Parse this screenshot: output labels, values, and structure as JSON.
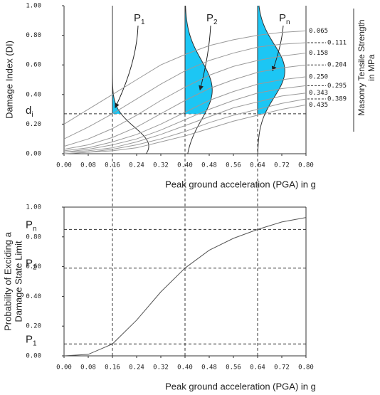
{
  "chart_data": [
    {
      "type": "line",
      "ylabel": "Damage Index (DI)",
      "xlabel": "Peak ground acceleration (PGA) in g",
      "legend_title": [
        "Masonry Tensile Strength",
        "in MPa"
      ],
      "xlim": [
        0,
        0.8
      ],
      "ylim": [
        0,
        1
      ],
      "xticks": [
        {
          "value": 0,
          "label": "0.00"
        },
        {
          "value": 0.08,
          "label": "0.08"
        },
        {
          "value": 0.16,
          "label": "0.16"
        },
        {
          "value": 0.24,
          "label": "0.24"
        },
        {
          "value": 0.32,
          "label": "0.32"
        },
        {
          "value": 0.4,
          "label": "0.40"
        },
        {
          "value": 0.48,
          "label": "0.48"
        },
        {
          "value": 0.56,
          "label": "0.56"
        },
        {
          "value": 0.64,
          "label": "0.64"
        },
        {
          "value": 0.72,
          "label": "0.72"
        },
        {
          "value": 0.8,
          "label": "0.80"
        }
      ],
      "yticks": [
        {
          "value": 0,
          "label": "0.00"
        },
        {
          "value": 0.2,
          "label": "0.20"
        },
        {
          "value": 0.4,
          "label": "0.40"
        },
        {
          "value": 0.6,
          "label": "0.60"
        },
        {
          "value": 0.8,
          "label": "0.80"
        },
        {
          "value": 1,
          "label": "1.00"
        }
      ],
      "x": [
        0,
        0.08,
        0.16,
        0.24,
        0.32,
        0.4,
        0.48,
        0.56,
        0.64,
        0.72,
        0.8
      ],
      "series": [
        {
          "name": "0.065",
          "color": "#9a9a9a",
          "values": [
            0.2,
            0.3,
            0.4,
            0.5,
            0.6,
            0.67,
            0.73,
            0.77,
            0.8,
            0.82,
            0.83
          ]
        },
        {
          "name": "0.111",
          "color": "#9a9a9a",
          "values": [
            0.1,
            0.18,
            0.27,
            0.37,
            0.47,
            0.56,
            0.63,
            0.68,
            0.72,
            0.74,
            0.75
          ]
        },
        {
          "name": "0.158",
          "color": "#9a9a9a",
          "values": [
            0.05,
            0.1,
            0.17,
            0.26,
            0.36,
            0.45,
            0.53,
            0.59,
            0.63,
            0.66,
            0.68
          ]
        },
        {
          "name": "0.204",
          "color": "#9a9a9a",
          "values": [
            0.03,
            0.06,
            0.11,
            0.18,
            0.27,
            0.36,
            0.44,
            0.5,
            0.55,
            0.58,
            0.6
          ]
        },
        {
          "name": "0.250",
          "color": "#9a9a9a",
          "values": [
            0.02,
            0.04,
            0.08,
            0.13,
            0.2,
            0.28,
            0.36,
            0.42,
            0.47,
            0.5,
            0.52
          ]
        },
        {
          "name": "0.295",
          "color": "#9a9a9a",
          "values": [
            0.01,
            0.03,
            0.06,
            0.1,
            0.16,
            0.23,
            0.3,
            0.36,
            0.41,
            0.44,
            0.46
          ]
        },
        {
          "name": "0.343",
          "color": "#9a9a9a",
          "values": [
            0.01,
            0.02,
            0.04,
            0.08,
            0.13,
            0.19,
            0.25,
            0.31,
            0.35,
            0.39,
            0.41
          ]
        },
        {
          "name": "0.389",
          "color": "#9a9a9a",
          "values": [
            0,
            0.01,
            0.03,
            0.06,
            0.1,
            0.15,
            0.21,
            0.26,
            0.3,
            0.34,
            0.37
          ]
        },
        {
          "name": "0.435",
          "color": "#9a9a9a",
          "values": [
            0,
            0.01,
            0.02,
            0.04,
            0.08,
            0.12,
            0.17,
            0.22,
            0.26,
            0.3,
            0.33
          ]
        }
      ],
      "threshold": {
        "label": "d",
        "sub": "i",
        "value": 0.27
      },
      "distributions": [
        {
          "label": "P",
          "sub": "1",
          "at": 0.16,
          "mean": 0.05,
          "sd": 0.13,
          "peak": 0.12,
          "color": "#333333",
          "fill": "#1cc6f4"
        },
        {
          "label": "P",
          "sub": "2",
          "at": 0.4,
          "mean": 0.43,
          "sd": 0.2,
          "peak": 0.09,
          "color": "#333333",
          "fill": "#1cc6f4"
        },
        {
          "label": "P",
          "sub": "n",
          "at": 0.64,
          "mean": 0.56,
          "sd": 0.18,
          "peak": 0.09,
          "color": "#333333",
          "fill": "#1cc6f4"
        }
      ]
    },
    {
      "type": "line",
      "ylabel": [
        "Probability of Exciding a",
        "Damage State Limit"
      ],
      "xlabel": "Peak ground acceleration (PGA) in g",
      "xlim": [
        0,
        0.8
      ],
      "ylim": [
        0,
        1
      ],
      "xticks": [
        {
          "value": 0,
          "label": "0.00"
        },
        {
          "value": 0.08,
          "label": "0.08"
        },
        {
          "value": 0.16,
          "label": "0.16"
        },
        {
          "value": 0.24,
          "label": "0.24"
        },
        {
          "value": 0.32,
          "label": "0.32"
        },
        {
          "value": 0.4,
          "label": "0.40"
        },
        {
          "value": 0.48,
          "label": "0.48"
        },
        {
          "value": 0.56,
          "label": "0.56"
        },
        {
          "value": 0.64,
          "label": "0.64"
        },
        {
          "value": 0.72,
          "label": "0.72"
        },
        {
          "value": 0.8,
          "label": "0.80"
        }
      ],
      "yticks": [
        {
          "value": 0,
          "label": "0.00"
        },
        {
          "value": 0.2,
          "label": "0.20"
        },
        {
          "value": 0.4,
          "label": "0.40"
        },
        {
          "value": 0.6,
          "label": "0.60"
        },
        {
          "value": 0.8,
          "label": "0.80"
        },
        {
          "value": 1,
          "label": "1.00"
        }
      ],
      "x": [
        0,
        0.08,
        0.16,
        0.24,
        0.32,
        0.4,
        0.48,
        0.56,
        0.64,
        0.72,
        0.8
      ],
      "series": [
        {
          "color": "#555555",
          "values": [
            0,
            0.01,
            0.08,
            0.24,
            0.43,
            0.59,
            0.71,
            0.79,
            0.85,
            0.9,
            0.93
          ]
        }
      ],
      "levels": [
        {
          "label": "P",
          "sub": "1",
          "at": 0.16,
          "value": 0.08
        },
        {
          "label": "P",
          "sub": "2",
          "at": 0.4,
          "value": 0.59
        },
        {
          "label": "P",
          "sub": "n",
          "at": 0.64,
          "value": 0.85
        }
      ]
    }
  ]
}
